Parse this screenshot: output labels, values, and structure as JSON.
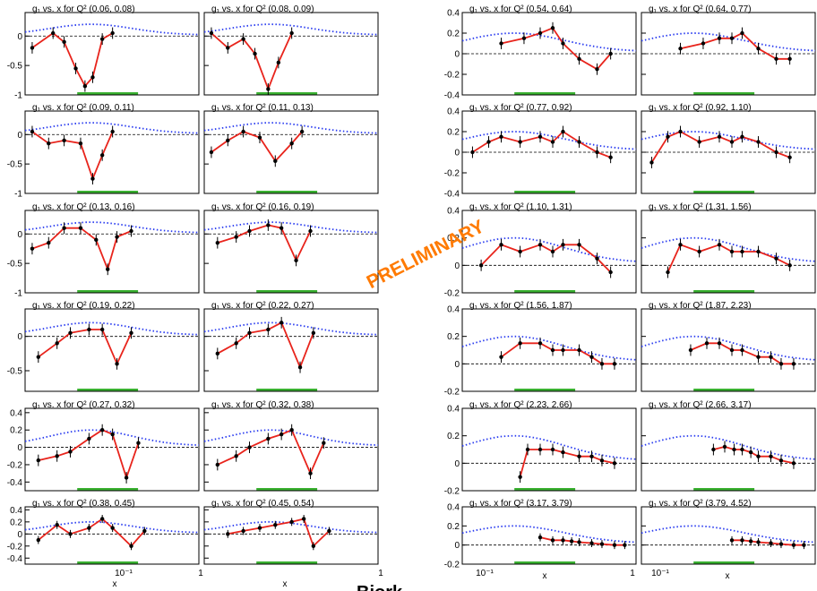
{
  "watermark": "PRELIMINARY",
  "bottom_caption": "Bjork...",
  "colors": {
    "data": "#000000",
    "fit": "#e8241c",
    "model": "#2a3cf0",
    "band": "#39b030",
    "frame": "#000000"
  },
  "axes": {
    "x_label": "x",
    "x_tick_labels": [
      "10⁻¹",
      "1"
    ],
    "x_scale": "log",
    "y_tick_labels_a": [
      "0",
      "-0.5",
      "-1"
    ],
    "y_tick_labels_b": [
      "0.4",
      "0.2",
      "0",
      "-0.2",
      "-0.4"
    ],
    "y_tick_labels_c": [
      "0.4",
      "0.2",
      "0",
      "-0.2"
    ]
  },
  "chart_data": [
    {
      "type": "scatter",
      "title": "g₁ vs. x for Q² (0.06, 0.08)",
      "x": [
        0.035,
        0.055,
        0.07,
        0.09,
        0.11,
        0.13,
        0.16,
        0.2
      ],
      "y": [
        -0.2,
        0.05,
        -0.1,
        -0.55,
        -0.85,
        -0.7,
        -0.05,
        0.05
      ],
      "xlim": [
        0.03,
        1.3
      ],
      "ylim": [
        -1,
        0.4
      ]
    },
    {
      "type": "scatter",
      "title": "g₁ vs. x for Q² (0.08, 0.09)",
      "x": [
        0.035,
        0.05,
        0.07,
        0.09,
        0.12,
        0.15,
        0.2
      ],
      "y": [
        0.05,
        -0.2,
        -0.05,
        -0.3,
        -0.9,
        -0.45,
        0.05
      ],
      "xlim": [
        0.03,
        1.3
      ],
      "ylim": [
        -1,
        0.4
      ]
    },
    {
      "type": "scatter",
      "title": "g₁ vs. x for Q² (0.09, 0.11)",
      "x": [
        0.035,
        0.05,
        0.07,
        0.1,
        0.13,
        0.16,
        0.2
      ],
      "y": [
        0.05,
        -0.15,
        -0.1,
        -0.15,
        -0.75,
        -0.35,
        0.05
      ],
      "xlim": [
        0.03,
        1.3
      ],
      "ylim": [
        -1,
        0.4
      ]
    },
    {
      "type": "scatter",
      "title": "g₁ vs. x for Q² (0.11, 0.13)",
      "x": [
        0.035,
        0.05,
        0.07,
        0.1,
        0.14,
        0.2,
        0.25
      ],
      "y": [
        -0.3,
        -0.1,
        0.05,
        -0.05,
        -0.45,
        -0.15,
        0.05
      ],
      "xlim": [
        0.03,
        1.3
      ],
      "ylim": [
        -1,
        0.4
      ]
    },
    {
      "type": "scatter",
      "title": "g₁ vs. x for Q² (0.13, 0.16)",
      "x": [
        0.035,
        0.05,
        0.07,
        0.1,
        0.14,
        0.18,
        0.22,
        0.3
      ],
      "y": [
        -0.25,
        -0.15,
        0.1,
        0.1,
        -0.1,
        -0.6,
        -0.05,
        0.05
      ],
      "xlim": [
        0.03,
        1.3
      ],
      "ylim": [
        -1,
        0.4
      ]
    },
    {
      "type": "scatter",
      "title": "g₁ vs. x for Q² (0.16, 0.19)",
      "x": [
        0.04,
        0.06,
        0.08,
        0.12,
        0.16,
        0.22,
        0.3
      ],
      "y": [
        -0.15,
        -0.05,
        0.05,
        0.15,
        0.1,
        -0.45,
        0.05
      ],
      "xlim": [
        0.03,
        1.3
      ],
      "ylim": [
        -1,
        0.4
      ]
    },
    {
      "type": "scatter",
      "title": "g₁ vs. x for Q² (0.19, 0.22)",
      "x": [
        0.04,
        0.06,
        0.08,
        0.12,
        0.16,
        0.22,
        0.3
      ],
      "y": [
        -0.3,
        -0.1,
        0.05,
        0.1,
        0.1,
        -0.4,
        0.05
      ],
      "xlim": [
        0.03,
        1.3
      ],
      "ylim": [
        -0.8,
        0.4
      ]
    },
    {
      "type": "scatter",
      "title": "g₁ vs. x for Q² (0.22, 0.27)",
      "x": [
        0.04,
        0.06,
        0.08,
        0.12,
        0.16,
        0.24,
        0.32
      ],
      "y": [
        -0.25,
        -0.1,
        0.05,
        0.1,
        0.2,
        -0.45,
        0.05
      ],
      "xlim": [
        0.03,
        1.3
      ],
      "ylim": [
        -0.8,
        0.4
      ]
    },
    {
      "type": "scatter",
      "title": "g₁ vs. x for Q² (0.27, 0.32)",
      "x": [
        0.04,
        0.06,
        0.08,
        0.12,
        0.16,
        0.2,
        0.27,
        0.35
      ],
      "y": [
        -0.15,
        -0.1,
        -0.05,
        0.1,
        0.2,
        0.15,
        -0.35,
        0.05
      ],
      "xlim": [
        0.03,
        1.3
      ],
      "ylim": [
        -0.5,
        0.45
      ]
    },
    {
      "type": "scatter",
      "title": "g₁ vs. x for Q² (0.32, 0.38)",
      "x": [
        0.04,
        0.06,
        0.08,
        0.12,
        0.16,
        0.2,
        0.3,
        0.4
      ],
      "y": [
        -0.2,
        -0.1,
        0.0,
        0.1,
        0.15,
        0.2,
        -0.3,
        0.05
      ],
      "xlim": [
        0.03,
        1.3
      ],
      "ylim": [
        -0.5,
        0.45
      ]
    },
    {
      "type": "scatter",
      "title": "g₁ vs. x for Q² (0.38, 0.45)",
      "x": [
        0.04,
        0.06,
        0.08,
        0.12,
        0.16,
        0.2,
        0.3,
        0.4
      ],
      "y": [
        -0.1,
        0.15,
        0.0,
        0.1,
        0.25,
        0.1,
        -0.2,
        0.05
      ],
      "xlim": [
        0.03,
        1.3
      ],
      "ylim": [
        -0.5,
        0.45
      ]
    },
    {
      "type": "scatter",
      "title": "g₁ vs. x for Q² (0.45, 0.54)",
      "x": [
        0.05,
        0.07,
        0.1,
        0.14,
        0.2,
        0.26,
        0.32,
        0.45
      ],
      "y": [
        0.0,
        0.05,
        0.1,
        0.15,
        0.2,
        0.25,
        -0.2,
        0.05
      ],
      "xlim": [
        0.03,
        1.3
      ],
      "ylim": [
        -0.5,
        0.45
      ]
    },
    {
      "type": "scatter",
      "title": "g₁ vs. x for Q² (0.54, 0.64)",
      "x": [
        0.1,
        0.15,
        0.2,
        0.25,
        0.3,
        0.4,
        0.55,
        0.7
      ],
      "y": [
        0.1,
        0.15,
        0.2,
        0.25,
        0.1,
        -0.05,
        -0.15,
        0.0
      ],
      "xlim": [
        0.05,
        1.1
      ],
      "ylim": [
        -0.4,
        0.4
      ]
    },
    {
      "type": "scatter",
      "title": "g₁ vs. x for Q² (0.64, 0.77)",
      "x": [
        0.1,
        0.15,
        0.2,
        0.25,
        0.3,
        0.4,
        0.55,
        0.7
      ],
      "y": [
        0.05,
        0.1,
        0.15,
        0.15,
        0.2,
        0.05,
        -0.05,
        -0.05
      ],
      "xlim": [
        0.05,
        1.1
      ],
      "ylim": [
        -0.4,
        0.4
      ]
    },
    {
      "type": "scatter",
      "title": "g₁ vs. x for Q² (0.77, 0.92)",
      "x": [
        0.06,
        0.08,
        0.1,
        0.14,
        0.2,
        0.25,
        0.3,
        0.4,
        0.55,
        0.7
      ],
      "y": [
        0.0,
        0.1,
        0.15,
        0.1,
        0.15,
        0.1,
        0.2,
        0.1,
        0.0,
        -0.05
      ],
      "xlim": [
        0.05,
        1.1
      ],
      "ylim": [
        -0.4,
        0.4
      ]
    },
    {
      "type": "scatter",
      "title": "g₁ vs. x for Q² (0.92, 1.10)",
      "x": [
        0.06,
        0.08,
        0.1,
        0.14,
        0.2,
        0.25,
        0.3,
        0.4,
        0.55,
        0.7
      ],
      "y": [
        -0.1,
        0.15,
        0.2,
        0.1,
        0.15,
        0.1,
        0.15,
        0.1,
        0.0,
        -0.05
      ],
      "xlim": [
        0.05,
        1.1
      ],
      "ylim": [
        -0.4,
        0.4
      ]
    },
    {
      "type": "scatter",
      "title": "g₁ vs. x for Q² (1.10, 1.31)",
      "x": [
        0.07,
        0.1,
        0.14,
        0.2,
        0.25,
        0.3,
        0.4,
        0.55,
        0.7
      ],
      "y": [
        0.0,
        0.15,
        0.1,
        0.15,
        0.1,
        0.15,
        0.15,
        0.05,
        -0.05
      ],
      "xlim": [
        0.05,
        1.1
      ],
      "ylim": [
        -0.2,
        0.4
      ]
    },
    {
      "type": "scatter",
      "title": "g₁ vs. x for Q² (1.31, 1.56)",
      "x": [
        0.08,
        0.1,
        0.14,
        0.2,
        0.25,
        0.3,
        0.4,
        0.55,
        0.7
      ],
      "y": [
        -0.05,
        0.15,
        0.1,
        0.15,
        0.1,
        0.1,
        0.1,
        0.05,
        0.0
      ],
      "xlim": [
        0.05,
        1.1
      ],
      "ylim": [
        -0.2,
        0.4
      ]
    },
    {
      "type": "scatter",
      "title": "g₁ vs. x for Q² (1.56, 1.87)",
      "x": [
        0.1,
        0.14,
        0.2,
        0.25,
        0.3,
        0.4,
        0.5,
        0.6,
        0.75
      ],
      "y": [
        0.05,
        0.15,
        0.15,
        0.1,
        0.1,
        0.1,
        0.05,
        0.0,
        0.0
      ],
      "xlim": [
        0.05,
        1.1
      ],
      "ylim": [
        -0.2,
        0.4
      ]
    },
    {
      "type": "scatter",
      "title": "g₁ vs. x for Q² (1.87, 2.23)",
      "x": [
        0.12,
        0.16,
        0.2,
        0.25,
        0.3,
        0.4,
        0.5,
        0.6,
        0.75
      ],
      "y": [
        0.1,
        0.15,
        0.15,
        0.1,
        0.1,
        0.05,
        0.05,
        0.0,
        0.0
      ],
      "xlim": [
        0.05,
        1.1
      ],
      "ylim": [
        -0.2,
        0.4
      ]
    },
    {
      "type": "scatter",
      "title": "g₁ vs. x for Q² (2.23, 2.66)",
      "x": [
        0.14,
        0.16,
        0.2,
        0.25,
        0.3,
        0.4,
        0.5,
        0.6,
        0.75
      ],
      "y": [
        -0.1,
        0.1,
        0.1,
        0.1,
        0.08,
        0.05,
        0.05,
        0.02,
        0.0
      ],
      "xlim": [
        0.05,
        1.1
      ],
      "ylim": [
        -0.2,
        0.4
      ]
    },
    {
      "type": "scatter",
      "title": "g₁ vs. x for Q² (2.66, 3.17)",
      "x": [
        0.18,
        0.22,
        0.26,
        0.3,
        0.35,
        0.4,
        0.5,
        0.6,
        0.75
      ],
      "y": [
        0.1,
        0.12,
        0.1,
        0.1,
        0.08,
        0.05,
        0.05,
        0.02,
        0.0
      ],
      "xlim": [
        0.05,
        1.1
      ],
      "ylim": [
        -0.2,
        0.4
      ]
    },
    {
      "type": "scatter",
      "title": "g₁ vs. x for Q² (3.17, 3.79)",
      "x": [
        0.2,
        0.25,
        0.3,
        0.35,
        0.4,
        0.5,
        0.6,
        0.75,
        0.9
      ],
      "y": [
        0.08,
        0.05,
        0.05,
        0.04,
        0.03,
        0.02,
        0.01,
        0.0,
        0.0
      ],
      "xlim": [
        0.05,
        1.1
      ],
      "ylim": [
        -0.2,
        0.4
      ]
    },
    {
      "type": "scatter",
      "title": "g₁ vs. x for Q² (3.79, 4.52)",
      "x": [
        0.25,
        0.3,
        0.35,
        0.4,
        0.5,
        0.6,
        0.75,
        0.9
      ],
      "y": [
        0.05,
        0.05,
        0.04,
        0.03,
        0.02,
        0.01,
        0.0,
        0.0
      ],
      "xlim": [
        0.05,
        1.1
      ],
      "ylim": [
        -0.2,
        0.4
      ]
    }
  ]
}
